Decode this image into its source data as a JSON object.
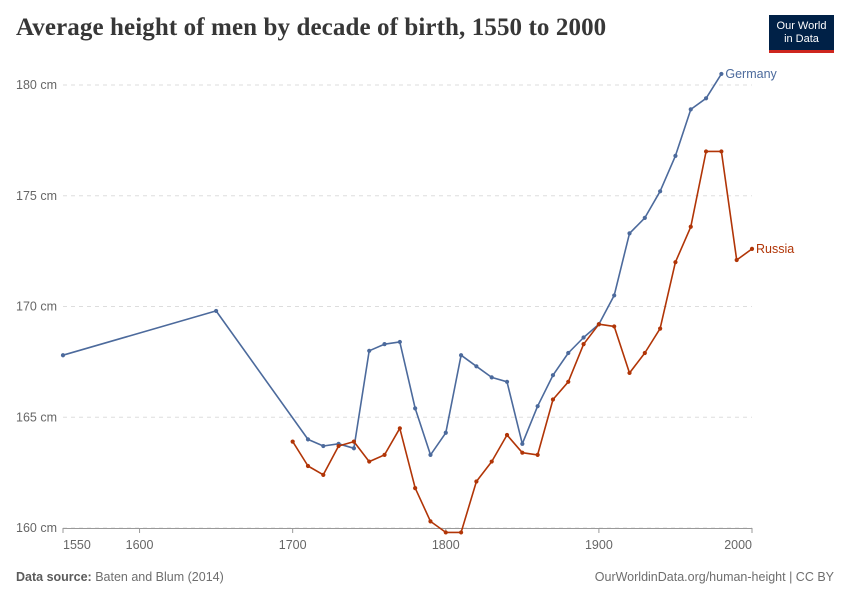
{
  "header": {
    "title": "Average height of men by decade of birth, 1550 to 2000",
    "logo_line1": "Our World",
    "logo_line2": "in Data"
  },
  "footer": {
    "source_label": "Data source:",
    "source_text": "Baten and Blum (2014)",
    "right_text": "OurWorldinData.org/human-height | CC BY"
  },
  "colors": {
    "germany": "#4c6a9c",
    "russia": "#b13507",
    "grid": "#dddddd",
    "axis": "#999999"
  },
  "chart_data": {
    "type": "line",
    "title": "Average height of men by decade of birth, 1550 to 2000",
    "xlabel": "",
    "ylabel": "",
    "xlim": [
      1550,
      2000
    ],
    "ylim": [
      160,
      180
    ],
    "x_ticks": [
      1550,
      1600,
      1700,
      1800,
      1900,
      2000
    ],
    "y_ticks": [
      160,
      165,
      170,
      175,
      180
    ],
    "y_tick_labels": [
      "160 cm",
      "165 cm",
      "170 cm",
      "175 cm",
      "180 cm"
    ],
    "grid": "horizontal dashed",
    "legend": "inline labels at line ends",
    "series": [
      {
        "name": "Germany",
        "color": "#4c6a9c",
        "points": [
          [
            1550,
            167.8
          ],
          [
            1650,
            169.8
          ],
          [
            1710,
            164.0
          ],
          [
            1720,
            163.7
          ],
          [
            1730,
            163.8
          ],
          [
            1740,
            163.6
          ],
          [
            1750,
            168.0
          ],
          [
            1760,
            168.3
          ],
          [
            1770,
            168.4
          ],
          [
            1780,
            165.4
          ],
          [
            1790,
            163.3
          ],
          [
            1800,
            164.3
          ],
          [
            1810,
            167.8
          ],
          [
            1820,
            167.3
          ],
          [
            1830,
            166.8
          ],
          [
            1840,
            166.6
          ],
          [
            1850,
            163.8
          ],
          [
            1860,
            165.5
          ],
          [
            1870,
            166.9
          ],
          [
            1880,
            167.9
          ],
          [
            1890,
            168.6
          ],
          [
            1900,
            169.2
          ],
          [
            1910,
            170.5
          ],
          [
            1920,
            173.3
          ],
          [
            1930,
            174.0
          ],
          [
            1940,
            175.2
          ],
          [
            1950,
            176.8
          ],
          [
            1960,
            178.9
          ],
          [
            1970,
            179.4
          ],
          [
            1980,
            180.5
          ]
        ]
      },
      {
        "name": "Russia",
        "color": "#b13507",
        "points": [
          [
            1700,
            163.9
          ],
          [
            1710,
            162.8
          ],
          [
            1720,
            162.4
          ],
          [
            1730,
            163.7
          ],
          [
            1740,
            163.9
          ],
          [
            1750,
            163.0
          ],
          [
            1760,
            163.3
          ],
          [
            1770,
            164.5
          ],
          [
            1780,
            161.8
          ],
          [
            1790,
            160.3
          ],
          [
            1800,
            159.8
          ],
          [
            1810,
            159.8
          ],
          [
            1820,
            162.1
          ],
          [
            1830,
            163.0
          ],
          [
            1840,
            164.2
          ],
          [
            1850,
            163.4
          ],
          [
            1860,
            163.3
          ],
          [
            1870,
            165.8
          ],
          [
            1880,
            166.6
          ],
          [
            1890,
            168.3
          ],
          [
            1900,
            169.2
          ],
          [
            1910,
            169.1
          ],
          [
            1920,
            167.0
          ],
          [
            1930,
            167.9
          ],
          [
            1940,
            169.0
          ],
          [
            1950,
            172.0
          ],
          [
            1960,
            173.6
          ],
          [
            1970,
            177.0
          ],
          [
            1980,
            177.0
          ],
          [
            1990,
            172.1
          ],
          [
            2000,
            172.6
          ]
        ]
      }
    ]
  }
}
